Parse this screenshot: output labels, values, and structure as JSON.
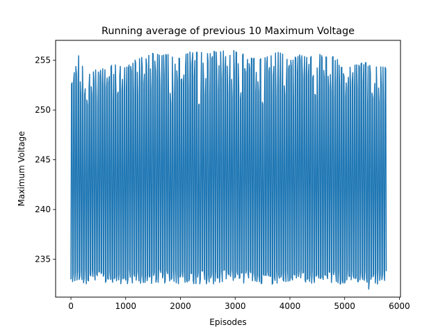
{
  "chart_data": {
    "type": "line",
    "title": "Running average of previous 10 Maximum Voltage",
    "xlabel": "Episodes",
    "ylabel": "Maximum Voltage",
    "xlim": [
      -280,
      6020
    ],
    "ylim": [
      231.2,
      257.0
    ],
    "xticks": [
      0,
      1000,
      2000,
      3000,
      4000,
      5000,
      6000
    ],
    "yticks": [
      235,
      240,
      245,
      250,
      255
    ],
    "grid": false,
    "legend": "none",
    "color": "#1f77b4",
    "series": [
      {
        "episodes_start": 0,
        "episodes_end": 5760,
        "n_points": 576,
        "low_band": [
          232.5,
          234.0
        ],
        "high_band": [
          250.5,
          256.0
        ],
        "cycle_length_episodes": 40,
        "min_value": 232.0,
        "max_value": 256.1,
        "final_value": 233.8,
        "envelope_peaks": [
          [
            50,
            253.8
          ],
          [
            150,
            255.7
          ],
          [
            300,
            254.2
          ],
          [
            500,
            254.0
          ],
          [
            800,
            254.9
          ],
          [
            1000,
            254.5
          ],
          [
            1200,
            255.2
          ],
          [
            1400,
            255.6
          ],
          [
            1600,
            255.9
          ],
          [
            1800,
            255.6
          ],
          [
            2000,
            255.9
          ],
          [
            2200,
            256.0
          ],
          [
            2400,
            255.9
          ],
          [
            2600,
            255.9
          ],
          [
            2800,
            256.0
          ],
          [
            3000,
            256.1
          ],
          [
            3200,
            255.5
          ],
          [
            3400,
            255.3
          ],
          [
            3600,
            255.5
          ],
          [
            3800,
            256.0
          ],
          [
            4000,
            255.2
          ],
          [
            4200,
            255.6
          ],
          [
            4400,
            255.6
          ],
          [
            4600,
            255.7
          ],
          [
            4800,
            255.7
          ],
          [
            5000,
            254.0
          ],
          [
            5200,
            254.7
          ],
          [
            5400,
            254.8
          ],
          [
            5600,
            254.5
          ]
        ]
      }
    ]
  }
}
